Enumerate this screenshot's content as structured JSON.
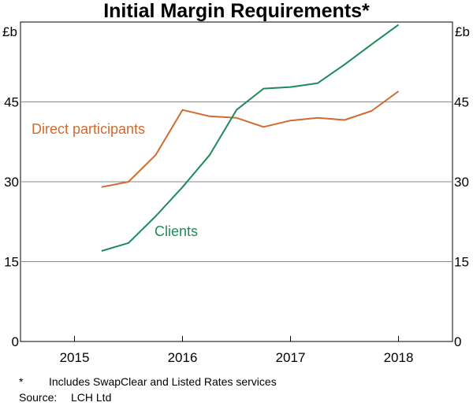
{
  "chart_data": {
    "type": "line",
    "title": "Initial Margin Requirements*",
    "unit_left": "£b",
    "unit_right": "£b",
    "ylim": [
      0,
      60
    ],
    "yticks": [
      0,
      15,
      30,
      45
    ],
    "xlim": [
      2014.5,
      2018.5
    ],
    "x_tick_labels": [
      "2015",
      "2016",
      "2017",
      "2018"
    ],
    "grid": true,
    "colors": {
      "direct": "#D06A30",
      "clients": "#1E8A5A"
    },
    "series": [
      {
        "name": "Direct participants",
        "x": [
          2015.25,
          2015.5,
          2015.75,
          2016.0,
          2016.25,
          2016.5,
          2016.75,
          2017.0,
          2017.25,
          2017.5,
          2017.75,
          2018.0
        ],
        "values": [
          29.0,
          30.0,
          35.0,
          43.5,
          42.3,
          42.0,
          40.3,
          41.5,
          42.0,
          41.6,
          43.3,
          47.0
        ]
      },
      {
        "name": "Clients",
        "x": [
          2015.25,
          2015.5,
          2015.75,
          2016.0,
          2016.25,
          2016.5,
          2016.75,
          2017.0,
          2017.25,
          2017.5,
          2017.75,
          2018.0
        ],
        "values": [
          17.0,
          18.5,
          23.5,
          29.0,
          35.0,
          43.5,
          47.5,
          47.8,
          48.5,
          52.0,
          55.8,
          59.5
        ]
      }
    ]
  },
  "footnote": {
    "marker": "*",
    "text": "Includes SwapClear and Listed Rates services"
  },
  "source": {
    "label": "Source:",
    "text": "LCH Ltd"
  }
}
